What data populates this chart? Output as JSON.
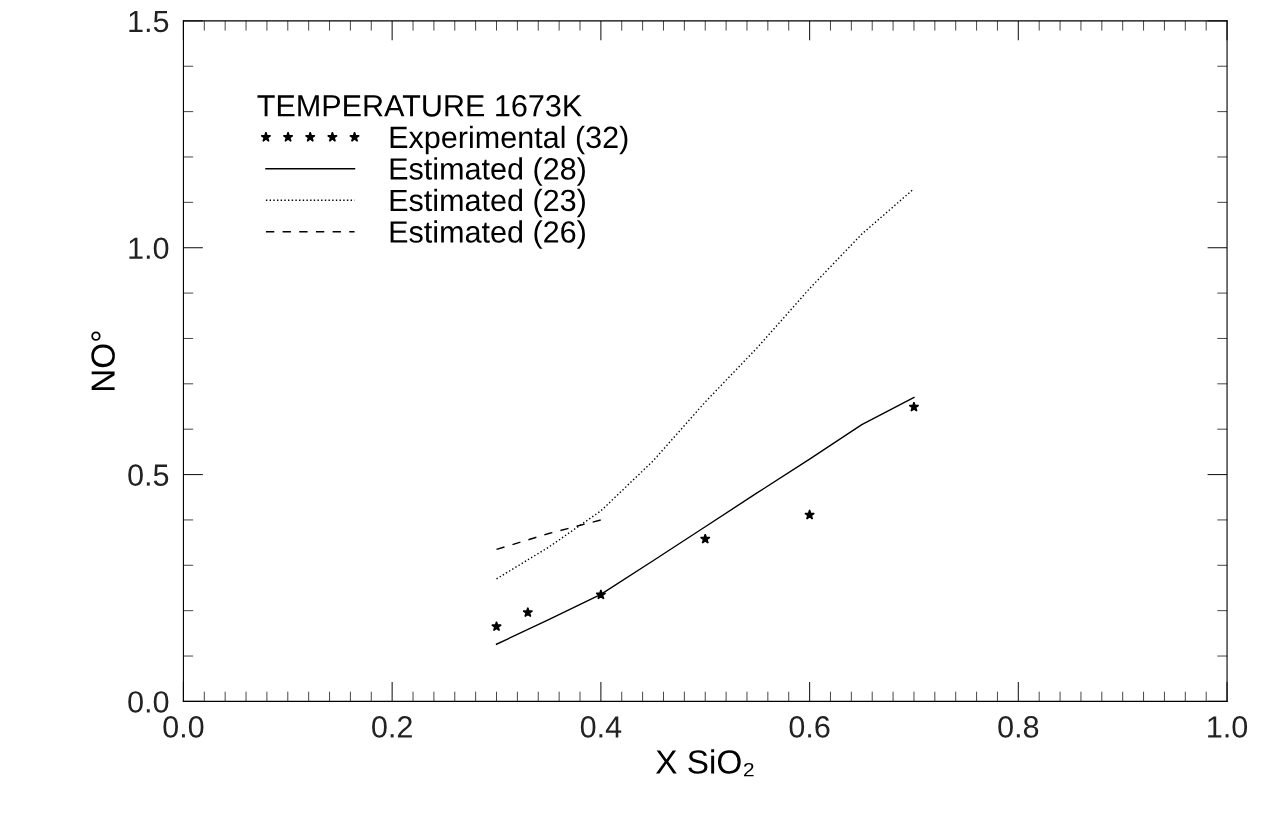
{
  "chart_data": {
    "type": "line",
    "xlabel": "X SiO₂",
    "ylabel": "NO°",
    "legend_title": "TEMPERATURE 1673K",
    "xlim": [
      0.0,
      1.0
    ],
    "ylim": [
      0.0,
      1.5
    ],
    "xticks": [
      {
        "value": 0.0,
        "label": "0.0"
      },
      0.2,
      0.4,
      0.6,
      0.8,
      {
        "value": 1.0,
        "label": "1.0"
      }
    ],
    "yticks": [
      {
        "value": 0.0,
        "label": "0.0"
      },
      0.5,
      {
        "value": 1.0,
        "label": "1.0"
      },
      1.5
    ],
    "grid": false,
    "legend": "top left",
    "series": [
      {
        "name": "Experimental (32)",
        "type": "scatter",
        "marker": "star",
        "color": "#000000",
        "x": [
          0.3,
          0.33,
          0.4,
          0.5,
          0.6,
          0.7
        ],
        "values": [
          0.165,
          0.196,
          0.235,
          0.358,
          0.411,
          0.649
        ]
      },
      {
        "name": "Estimated (28)",
        "line_style": "solid",
        "color": "#000000",
        "x": [
          0.3,
          0.35,
          0.4,
          0.45,
          0.5,
          0.55,
          0.6,
          0.65,
          0.7
        ],
        "values": [
          0.126,
          0.18,
          0.236,
          0.31,
          0.385,
          0.46,
          0.534,
          0.61,
          0.67
        ]
      },
      {
        "name": "Estimated (23)",
        "line_style": "dotted",
        "color": "#000000",
        "x": [
          0.3,
          0.35,
          0.4,
          0.45,
          0.5,
          0.55,
          0.6,
          0.65,
          0.7
        ],
        "values": [
          0.27,
          0.34,
          0.42,
          0.53,
          0.66,
          0.78,
          0.91,
          1.03,
          1.13
        ]
      },
      {
        "name": "Estimated (26)",
        "line_style": "dashed",
        "color": "#000000",
        "x": [
          0.3,
          0.35,
          0.4
        ],
        "values": [
          0.335,
          0.37,
          0.4
        ]
      }
    ]
  }
}
